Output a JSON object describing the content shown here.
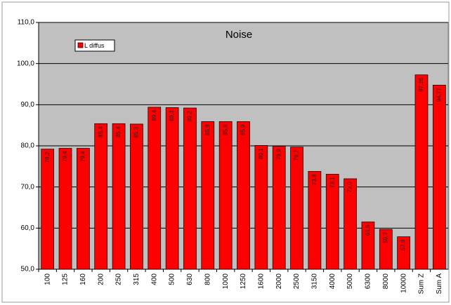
{
  "chart_data": {
    "type": "bar",
    "title": "Noise",
    "categories": [
      "100",
      "125",
      "160",
      "200",
      "250",
      "315",
      "400",
      "500",
      "630",
      "800",
      "1000",
      "1250",
      "1600",
      "2000",
      "2500",
      "3150",
      "4000",
      "5000",
      "6300",
      "8000",
      "10000",
      "Sum Z",
      "Sum A"
    ],
    "series": [
      {
        "name": "L diffus",
        "color": "#ff0000",
        "values": [
          79.2,
          79.4,
          79.4,
          85.4,
          85.4,
          85.3,
          89.4,
          89.3,
          89.2,
          85.9,
          85.9,
          85.9,
          80.1,
          79.9,
          79.7,
          73.8,
          73.1,
          72.0,
          61.5,
          59.7,
          57.9,
          97.26,
          94.77
        ],
        "value_labels": [
          "79,2",
          "79,4",
          "79,4",
          "85,4",
          "85,4",
          "85,3",
          "89,4",
          "89,3",
          "89,2",
          "85,9",
          "85,9",
          "85,9",
          "80,1",
          "79,9",
          "79,7",
          "73,8",
          "73,1",
          "72,0",
          "61,5",
          "59,7",
          "57,9",
          "97,26",
          "94,77"
        ]
      }
    ],
    "ylim": [
      50,
      110
    ],
    "yticks": [
      {
        "value": 50,
        "label": "50,0"
      },
      {
        "value": 60,
        "label": "60,0"
      },
      {
        "value": 70,
        "label": "70,0"
      },
      {
        "value": 80,
        "label": "80,0"
      },
      {
        "value": 90,
        "label": "90,0"
      },
      {
        "value": 100,
        "label": "100,0"
      },
      {
        "value": 110,
        "label": "110,0"
      }
    ],
    "grid": true,
    "legend": "top-left"
  }
}
